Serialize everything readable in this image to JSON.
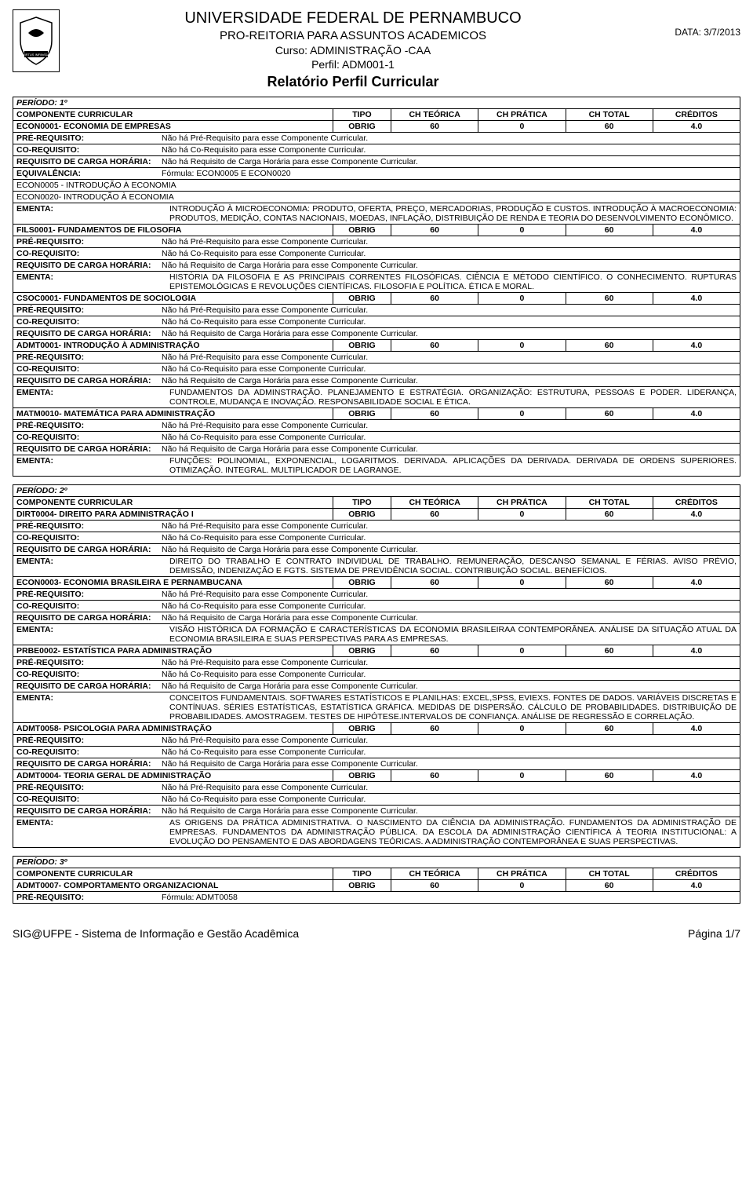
{
  "header": {
    "university": "UNIVERSIDADE FEDERAL DE PERNAMBUCO",
    "proReitoria": "PRO-REITORIA PARA ASSUNTOS ACADEMICOS",
    "cursoLabel": "Curso: ADMINISTRAÇÃO -CAA",
    "perfilLabel": "Perfil: ADM001-1",
    "reportTitle": "Relatório Perfil Curricular",
    "dateLabel": "DATA: 3/7/2013"
  },
  "labels": {
    "componente": "COMPONENTE CURRICULAR",
    "tipo": "TIPO",
    "chTeorica": "CH TEÓRICA",
    "chPratica": "CH PRÁTICA",
    "chTotal": "CH TOTAL",
    "creditos": "CRÉDITOS",
    "preReq": "PRÉ-REQUISITO:",
    "coReq": "CO-REQUISITO:",
    "reqCarga": "REQUISITO DE CARGA HORÁRIA:",
    "equiv": "EQUIVALÊNCIA:",
    "ementa": "EMENTA:",
    "noPre": "Não há Pré-Requisito para esse Componente Curricular.",
    "noCo": "Não há Co-Requisito para esse Componente Curricular.",
    "noCarga": "Não há Requisito de Carga Horária para esse Componente Curricular."
  },
  "periods": [
    {
      "title": "PERÍODO: 1º",
      "components": [
        {
          "name": "ECON0001- ECONOMIA DE EMPRESAS",
          "tipo": "OBRIG",
          "teo": "60",
          "pra": "0",
          "tot": "60",
          "cred": "4.0",
          "preReq": "Não há Pré-Requisito para esse Componente Curricular.",
          "coReq": "Não há Co-Requisito para esse Componente Curricular.",
          "reqCarga": "Não há Requisito de Carga Horária para esse Componente Curricular.",
          "equiv": "Fórmula: ECON0005 E ECON0020",
          "equivList": [
            "ECON0005 - INTRODUÇÃO À ECONOMIA",
            "ECON0020- INTRODUÇÃO À ECONOMIA"
          ],
          "ementa": "INTRODUÇÃO À MICROECONOMIA: PRODUTO, OFERTA, PREÇO, MERCADORIAS, PRODUÇÃO E CUSTOS. INTRODUÇÃO À MACROECONOMIA: PRODUTOS, MEDIÇÃO, CONTAS NACIONAIS, MOEDAS, INFLAÇÃO, DISTRIBUIÇÃO DE RENDA E TEORIA DO DESENVOLVIMENTO ECONÔMICO."
        },
        {
          "name": "FILS0001- FUNDAMENTOS DE FILOSOFIA",
          "tipo": "OBRIG",
          "teo": "60",
          "pra": "0",
          "tot": "60",
          "cred": "4.0",
          "preReq": "Não há Pré-Requisito para esse Componente Curricular.",
          "coReq": "Não há Co-Requisito para esse Componente Curricular.",
          "reqCarga": "Não há Requisito de Carga Horária para esse Componente Curricular.",
          "ementa": "HISTÓRIA DA FILOSOFIA E AS PRINCIPAIS CORRENTES FILOSÓFICAS. CIÊNCIA E MÉTODO CIENTÍFICO. O CONHECIMENTO. RUPTURAS EPISTEMOLÓGICAS E REVOLUÇÕES CIENTÍFICAS. FILOSOFIA E POLÍTICA. ÉTICA E MORAL."
        },
        {
          "name": "CSOC0001- FUNDAMENTOS DE SOCIOLOGIA",
          "tipo": "OBRIG",
          "teo": "60",
          "pra": "0",
          "tot": "60",
          "cred": "4.0",
          "preReq": "Não há Pré-Requisito para esse Componente Curricular.",
          "coReq": "Não há Co-Requisito para esse Componente Curricular.",
          "reqCarga": "Não há Requisito de Carga Horária para esse Componente Curricular."
        },
        {
          "name": "ADMT0001- INTRODUÇÃO À ADMINISTRAÇÃO",
          "tipo": "OBRIG",
          "teo": "60",
          "pra": "0",
          "tot": "60",
          "cred": "4.0",
          "preReq": "Não há Pré-Requisito para esse Componente Curricular.",
          "coReq": "Não há Co-Requisito para esse Componente Curricular.",
          "reqCarga": "Não há Requisito de Carga Horária para esse Componente Curricular.",
          "ementa": "FUNDAMENTOS DA ADMINSTRAÇÃO. PLANEJAMENTO E ESTRATÉGIA. ORGANIZAÇÃO: ESTRUTURA, PESSOAS E PODER. LIDERANÇA, CONTROLE, MUDANÇA E INOVAÇÃO. RESPONSABILIDADE SOCIAL E ÉTICA."
        },
        {
          "name": "MATM0010- MATEMÁTICA PARA ADMINISTRAÇÃO",
          "tipo": "OBRIG",
          "teo": "60",
          "pra": "0",
          "tot": "60",
          "cred": "4.0",
          "preReq": "Não há Pré-Requisito para esse Componente Curricular.",
          "coReq": "Não há Co-Requisito para esse Componente Curricular.",
          "reqCarga": "Não há Requisito de Carga Horária para esse Componente Curricular.",
          "ementa": "FUNÇÕES: POLINOMIAL, EXPONENCIAL, LOGARITMOS. DERIVADA. APLICAÇÕES DA DERIVADA. DERIVADA DE ORDENS SUPERIORES. OTIMIZAÇÃO. INTEGRAL. MULTIPLICADOR DE LAGRANGE."
        }
      ]
    },
    {
      "title": "PERÍODO: 2º",
      "components": [
        {
          "name": "DIRT0004- DIREITO PARA ADMINISTRAÇÃO I",
          "tipo": "OBRIG",
          "teo": "60",
          "pra": "0",
          "tot": "60",
          "cred": "4.0",
          "preReq": "Não há Pré-Requisito para esse Componente Curricular.",
          "coReq": "Não há Co-Requisito para esse Componente Curricular.",
          "reqCarga": "Não há Requisito de Carga Horária para esse Componente Curricular.",
          "ementa": "DIREITO DO TRABALHO E CONTRATO INDIVIDUAL DE TRABALHO. REMUNERAÇÃO, DESCANSO SEMANAL E FÉRIAS. AVISO PRÉVIO, DEMISSÃO, INDENIZAÇÃO E FGTS. SISTEMA DE PREVIDÊNCIA SOCIAL. CONTRIBUIÇÃO SOCIAL. BENEFÍCIOS."
        },
        {
          "name": "ECON0003- ECONOMIA BRASILEIRA E PERNAMBUCANA",
          "tipo": "OBRIG",
          "teo": "60",
          "pra": "0",
          "tot": "60",
          "cred": "4.0",
          "preReq": "Não há Pré-Requisito para esse Componente Curricular.",
          "coReq": "Não há Co-Requisito para esse Componente Curricular.",
          "reqCarga": "Não há Requisito de Carga Horária para esse Componente Curricular.",
          "ementa": "VISÃO HISTÓRICA DA FORMAÇÃO E CARACTERÍSTICAS DA ECONOMIA BRASILEIRAA CONTEMPORÂNEA. ANÁLISE DA SITUAÇÃO ATUAL DA ECONOMIA BRASILEIRA E SUAS PERSPECTIVAS PARA AS EMPRESAS."
        },
        {
          "name": "PRBE0002- ESTATÍSTICA PARA ADMINISTRAÇÃO",
          "tipo": "OBRIG",
          "teo": "60",
          "pra": "0",
          "tot": "60",
          "cred": "4.0",
          "preReq": "Não há Pré-Requisito para esse Componente Curricular.",
          "coReq": "Não há Co-Requisito para esse Componente Curricular.",
          "reqCarga": "Não há Requisito de Carga Horária para esse Componente Curricular.",
          "ementa": "CONCEITOS FUNDAMENTAIS. SOFTWARES ESTATÍSTICOS E PLANILHAS: EXCEL,SPSS, EVIEXS. FONTES DE DADOS. VARIÁVEIS DISCRETAS E CONTÍNUAS. SÉRIES ESTATÍSTICAS, ESTATÍSTICA GRÁFICA. MEDIDAS DE DISPERSÃO. CÁLCULO DE PROBABILIDADES. DISTRIBUIÇÃO DE PROBABILIDADES. AMOSTRAGEM. TESTES DE HIPÓTESE.INTERVALOS DE CONFIANÇA. ANÁLISE DE REGRESSÃO E CORRELAÇÃO."
        },
        {
          "name": "ADMT0058- PSICOLOGIA PARA ADMINISTRAÇÃO",
          "tipo": "OBRIG",
          "teo": "60",
          "pra": "0",
          "tot": "60",
          "cred": "4.0",
          "preReq": "Não há Pré-Requisito para esse Componente Curricular.",
          "coReq": "Não há Co-Requisito para esse Componente Curricular.",
          "reqCarga": "Não há Requisito de Carga Horária para esse Componente Curricular."
        },
        {
          "name": "ADMT0004- TEORIA GERAL DE ADMINISTRAÇÃO",
          "tipo": "OBRIG",
          "teo": "60",
          "pra": "0",
          "tot": "60",
          "cred": "4.0",
          "preReq": "Não há Pré-Requisito para esse Componente Curricular.",
          "coReq": "Não há Co-Requisito para esse Componente Curricular.",
          "reqCarga": "Não há Requisito de Carga Horária para esse Componente Curricular.",
          "ementa": "AS ORIGENS DA PRÁTICA ADMINISTRATIVA. O NASCIMENTO DA CIÊNCIA DA ADMINISTRAÇÃO. FUNDAMENTOS DA ADMINISTRAÇÃO DE EMPRESAS. FUNDAMENTOS DA ADMINISTRAÇÃO PÚBLICA. DA ESCOLA DA ADMINISTRAÇÃO CIENTÍFICA À TEORIA INSTITUCIONAL: A EVOLUÇÃO DO PENSAMENTO E DAS ABORDAGENS TEÓRICAS. A ADMINISTRAÇÃO CONTEMPORÂNEA E SUAS PERSPECTIVAS."
        }
      ]
    },
    {
      "title": "PERÍODO: 3º",
      "components": [
        {
          "name": "ADMT0007- COMPORTAMENTO ORGANIZACIONAL",
          "tipo": "OBRIG",
          "teo": "60",
          "pra": "0",
          "tot": "60",
          "cred": "4.0",
          "preReq": "Fórmula: ADMT0058"
        }
      ]
    }
  ],
  "footer": {
    "left": "SIG@UFPE - Sistema de Informação e Gestão Acadêmica",
    "right": "Página 1/7"
  }
}
